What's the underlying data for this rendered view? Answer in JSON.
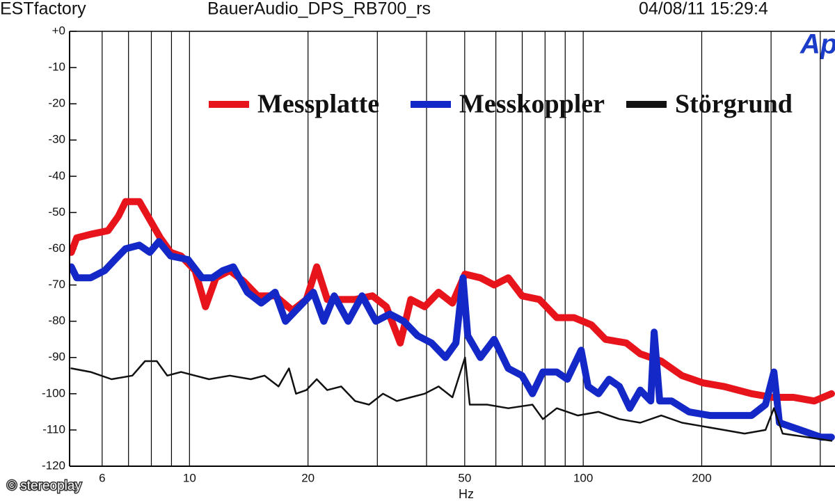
{
  "header": {
    "left": "ESTfactory",
    "center": "BauerAudio_DPS_RB700_rs",
    "right": "04/08/11 15:29:4",
    "logo": "Ap"
  },
  "credit": "© stereoplay",
  "chart_data": {
    "type": "line",
    "xscale": "log",
    "xlabel": "Hz",
    "xlim": [
      5,
      436
    ],
    "xticks": [
      6,
      10,
      20,
      50,
      100,
      200
    ],
    "xminor": [
      7,
      8,
      9,
      30,
      40,
      60,
      70,
      80,
      90,
      300,
      400
    ],
    "ylim": [
      -120,
      0
    ],
    "yticks": [
      {
        "value": 0,
        "label": "+0"
      },
      -10,
      -20,
      -30,
      -40,
      -50,
      -60,
      -70,
      -80,
      -90,
      -100,
      -110,
      -120
    ],
    "grid": "x",
    "legend": "top",
    "series": [
      {
        "name": "Messplatte",
        "color": "#e8141c",
        "width": 10,
        "x": [
          5.01,
          5.17,
          5.61,
          6.21,
          6.6,
          6.88,
          7.46,
          7.93,
          8.43,
          8.96,
          9.52,
          10.33,
          10.98,
          11.67,
          12.66,
          13.74,
          14.9,
          16.5,
          18.26,
          19.81,
          21.05,
          22.38,
          24.28,
          26.34,
          29.15,
          31.62,
          34.3,
          36.47,
          39.56,
          42.91,
          46.54,
          50.1,
          54.8,
          59.4,
          64.5,
          69.9,
          77.4,
          85.7,
          94.8,
          104.9,
          113.9,
          128.7,
          139.6,
          157.8,
          178.2,
          201.4,
          227.5,
          267.7,
          302.5,
          341.8,
          386.2,
          427.3
        ],
        "values": [
          -61,
          -57,
          -56,
          -55,
          -51,
          -47,
          -47,
          -52,
          -57,
          -61,
          -62,
          -66,
          -76,
          -68,
          -66,
          -69,
          -73,
          -73,
          -77,
          -74,
          -65,
          -74,
          -74,
          -74,
          -73,
          -76,
          -86,
          -74,
          -76,
          -72,
          -75,
          -67,
          -68,
          -70,
          -68,
          -73,
          -74,
          -79,
          -79,
          -81,
          -85,
          -86,
          -89,
          -91,
          -95,
          -97,
          -98,
          -100,
          -101,
          -101,
          -102,
          -100
        ]
      },
      {
        "name": "Messkoppler",
        "color": "#1428c8",
        "width": 10,
        "x": [
          5.01,
          5.17,
          5.61,
          6.09,
          6.47,
          6.88,
          7.46,
          7.93,
          8.36,
          8.96,
          9.92,
          10.76,
          11.43,
          12.16,
          12.92,
          14.02,
          15.21,
          16.5,
          17.53,
          19.02,
          20.63,
          21.93,
          23.31,
          25.29,
          27.43,
          29.75,
          32.27,
          35.01,
          37.97,
          41.19,
          44.68,
          47.5,
          49.5,
          50.9,
          54.8,
          59.4,
          64.5,
          69.9,
          74.3,
          79.0,
          85.7,
          91.1,
          98.8,
          102.9,
          109.4,
          116.3,
          123.6,
          131.3,
          139.6,
          148.4,
          151.4,
          156.4,
          167.6,
          185.6,
          209.8,
          237.0,
          267.7,
          290.4,
          305,
          315,
          355.9,
          402,
          427
        ],
        "values": [
          -65,
          -68,
          -68,
          -66,
          -63,
          -60,
          -59,
          -61,
          -58,
          -62,
          -63,
          -68,
          -68,
          -66,
          -65,
          -72,
          -75,
          -72,
          -80,
          -76,
          -72,
          -80,
          -73,
          -80,
          -73,
          -80,
          -78,
          -80,
          -84,
          -86,
          -90,
          -86,
          -68,
          -84,
          -90,
          -85,
          -93,
          -95,
          -100,
          -94,
          -94,
          -96,
          -88,
          -98,
          -100,
          -96,
          -98,
          -104,
          -99,
          -102,
          -83,
          -102,
          -102,
          -105,
          -106,
          -106,
          -106,
          -103,
          -94,
          -108,
          -110,
          -112,
          -112
        ]
      },
      {
        "name": "Störgrund",
        "color": "#111111",
        "width": 2.5,
        "x": [
          5.01,
          5.61,
          6.34,
          7.16,
          7.71,
          8.26,
          8.78,
          9.52,
          10.33,
          11.21,
          12.66,
          14.31,
          15.51,
          16.83,
          17.89,
          18.64,
          19.81,
          21.05,
          22.38,
          24.28,
          26.34,
          28.57,
          31.0,
          33.61,
          36.47,
          39.56,
          42.91,
          46.54,
          50.1,
          51.5,
          57.0,
          64.5,
          74.3,
          79.0,
          85.7,
          96.8,
          109.4,
          123.6,
          139.6,
          157.8,
          178.2,
          201.4,
          227.5,
          257,
          290.4,
          305,
          321,
          370.7,
          427.3
        ],
        "values": [
          -93,
          -94,
          -96,
          -95,
          -91,
          -91,
          -95,
          -94,
          -95,
          -96,
          -95,
          -96,
          -95,
          -98,
          -93,
          -100,
          -99,
          -96,
          -99,
          -98,
          -102,
          -103,
          -100,
          -102,
          -101,
          -100,
          -98,
          -101,
          -90,
          -103,
          -103,
          -104,
          -103,
          -107,
          -104,
          -106,
          -105,
          -107,
          -108,
          -106,
          -108,
          -109,
          -110,
          -111,
          -110,
          -104,
          -111,
          -112,
          -113
        ]
      }
    ]
  }
}
